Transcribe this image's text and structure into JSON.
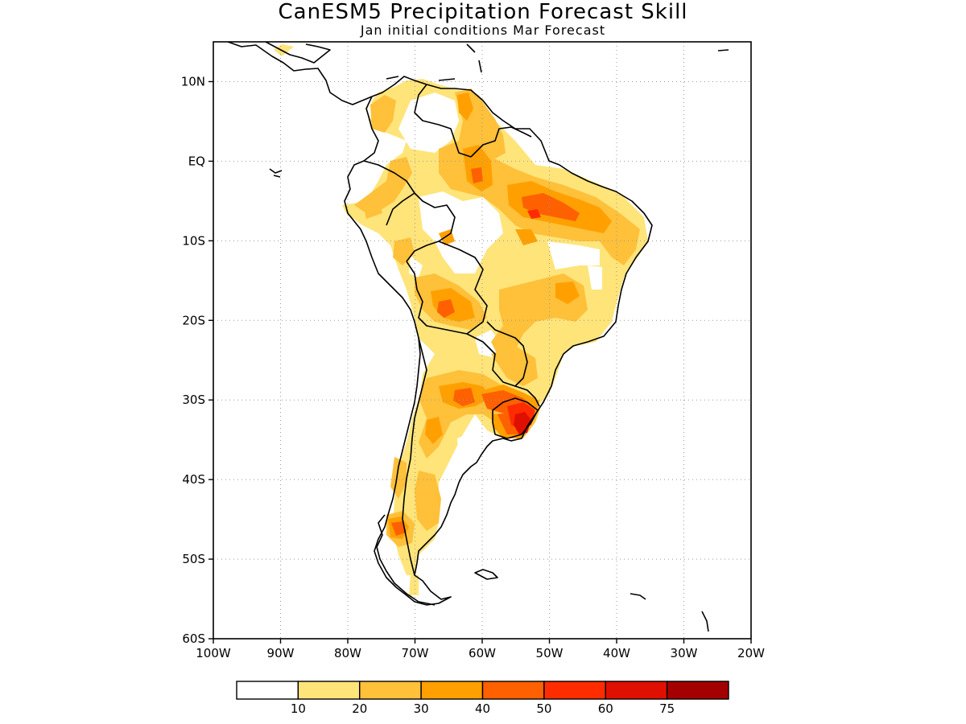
{
  "map": {
    "title": "CanESM5 Precipitation Forecast Skill",
    "subtitle": "Jan initial conditions  Mar Forecast",
    "lon_range": [
      -100,
      -20
    ],
    "lat_range": [
      -60,
      15
    ],
    "lat_ticks": [
      {
        "value": 10,
        "label": "10N"
      },
      {
        "value": 0,
        "label": "EQ"
      },
      {
        "value": -10,
        "label": "10S"
      },
      {
        "value": -20,
        "label": "20S"
      },
      {
        "value": -30,
        "label": "30S"
      },
      {
        "value": -40,
        "label": "40S"
      },
      {
        "value": -50,
        "label": "50S"
      },
      {
        "value": -60,
        "label": "60S"
      }
    ],
    "lon_ticks": [
      {
        "value": -100,
        "label": "100W"
      },
      {
        "value": -90,
        "label": "90W"
      },
      {
        "value": -80,
        "label": "80W"
      },
      {
        "value": -70,
        "label": "70W"
      },
      {
        "value": -60,
        "label": "60W"
      },
      {
        "value": -50,
        "label": "50W"
      },
      {
        "value": -40,
        "label": "40W"
      },
      {
        "value": -30,
        "label": "30W"
      },
      {
        "value": -20,
        "label": "20W"
      }
    ],
    "grid": true
  },
  "legend": {
    "colors": [
      "#ffffff",
      "#ffe47a",
      "#ffc03a",
      "#ffa000",
      "#ff6000",
      "#ff2c00",
      "#e01000",
      "#a50000"
    ],
    "labels": [
      "10",
      "20",
      "30",
      "40",
      "50",
      "60",
      "75"
    ]
  }
}
